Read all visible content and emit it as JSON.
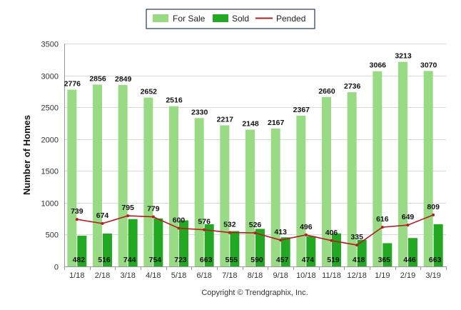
{
  "chart_data": {
    "type": "bar",
    "title": "",
    "xlabel": "",
    "ylabel": "Number of Homes",
    "ylim": [
      0,
      3500
    ],
    "yticks": [
      0,
      500,
      1000,
      1500,
      2000,
      2500,
      3000,
      3500
    ],
    "grid": true,
    "legend_position": "top-center",
    "categories": [
      "1/18",
      "2/18",
      "3/18",
      "4/18",
      "5/18",
      "6/18",
      "7/18",
      "8/18",
      "9/18",
      "10/18",
      "11/18",
      "12/18",
      "1/19",
      "2/19",
      "3/19"
    ],
    "series": [
      {
        "name": "For Sale",
        "type": "bar",
        "color": "#99db84",
        "values": [
          2776,
          2856,
          2849,
          2652,
          2516,
          2330,
          2217,
          2148,
          2167,
          2367,
          2660,
          2736,
          3066,
          3213,
          3070
        ]
      },
      {
        "name": "Sold",
        "type": "bar",
        "color": "#22a822",
        "values": [
          482,
          516,
          744,
          754,
          723,
          663,
          555,
          590,
          457,
          474,
          519,
          418,
          365,
          446,
          663
        ]
      },
      {
        "name": "Pended",
        "type": "line",
        "color": "#b21f1f",
        "values": [
          739,
          674,
          795,
          779,
          600,
          576,
          532,
          526,
          413,
          496,
          406,
          335,
          616,
          649,
          809
        ]
      }
    ],
    "footer": "Copyright © Trendgraphix, Inc."
  }
}
